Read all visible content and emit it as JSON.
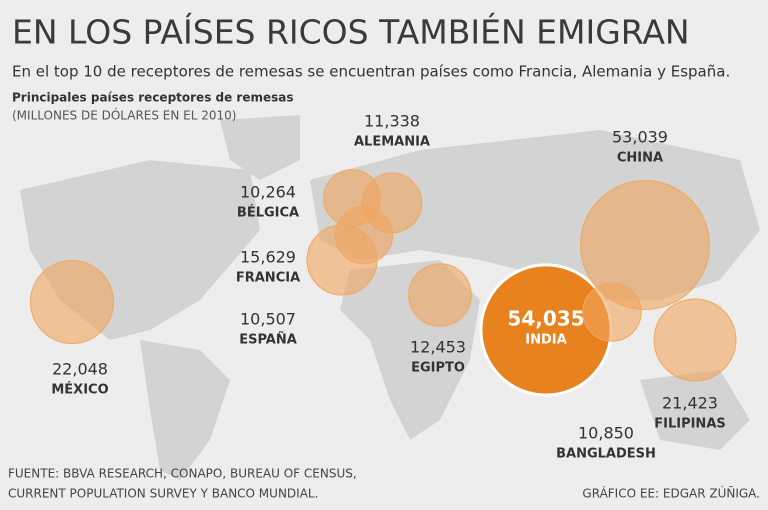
{
  "header": {
    "title": "EN LOS PAÍSES RICOS TAMBIÉN EMIGRAN",
    "subtitle": "En el top 10 de receptores de remesas se encuentran países como Francia, Alemania y España.",
    "legend_title": "Principales países receptores de remesas",
    "legend_unit": "(MILLONES DE DÓLARES EN EL 2010)"
  },
  "countries": [
    {
      "name": "MÉXICO",
      "value": 22048,
      "value_label": "22,048"
    },
    {
      "name": "BÉLGICA",
      "value": 10264,
      "value_label": "10,264"
    },
    {
      "name": "ALEMANIA",
      "value": 11338,
      "value_label": "11,338"
    },
    {
      "name": "FRANCIA",
      "value": 15629,
      "value_label": "15,629"
    },
    {
      "name": "ESPAÑA",
      "value": 10507,
      "value_label": "10,507"
    },
    {
      "name": "EGIPTO",
      "value": 12453,
      "value_label": "12,453"
    },
    {
      "name": "INDIA",
      "value": 54035,
      "value_label": "54,035"
    },
    {
      "name": "BANGLADESH",
      "value": 10850,
      "value_label": "10,850"
    },
    {
      "name": "CHINA",
      "value": 53039,
      "value_label": "53,039"
    },
    {
      "name": "FILIPINAS",
      "value": 21423,
      "value_label": "21,423"
    }
  ],
  "footer": {
    "source_line1": "FUENTE: BBVA RESEARCH, CONAPO, BUREAU OF CENSUS,",
    "source_line2": "CURRENT POPULATION SURVEY Y BANCO MUNDIAL.",
    "credit": "GRÁFICO EE: EDGAR ZÚÑIGA."
  }
}
